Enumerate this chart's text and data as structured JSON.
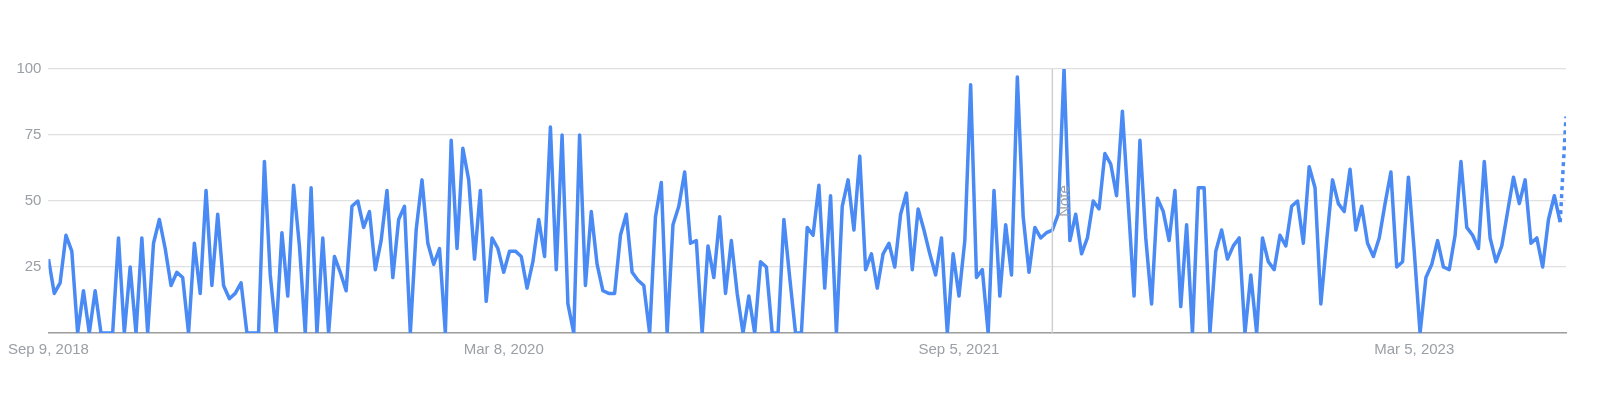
{
  "chart_data": {
    "type": "line",
    "marker": "none",
    "grid": "y",
    "x": [
      "2018-09-09",
      "2018-09-16",
      "2018-09-23",
      "2018-09-30",
      "2018-10-07",
      "2018-10-14",
      "2018-10-21",
      "2018-10-28",
      "2018-11-04",
      "2018-11-11",
      "2018-11-18",
      "2018-11-25",
      "2018-12-02",
      "2018-12-09",
      "2018-12-16",
      "2018-12-23",
      "2018-12-30",
      "2019-01-06",
      "2019-01-13",
      "2019-01-20",
      "2019-01-27",
      "2019-02-03",
      "2019-02-10",
      "2019-02-17",
      "2019-02-24",
      "2019-03-03",
      "2019-03-10",
      "2019-03-17",
      "2019-03-24",
      "2019-03-31",
      "2019-04-07",
      "2019-04-14",
      "2019-04-21",
      "2019-04-28",
      "2019-05-05",
      "2019-05-12",
      "2019-05-19",
      "2019-05-26",
      "2019-06-02",
      "2019-06-09",
      "2019-06-16",
      "2019-06-23",
      "2019-06-30",
      "2019-07-07",
      "2019-07-14",
      "2019-07-21",
      "2019-07-28",
      "2019-08-04",
      "2019-08-11",
      "2019-08-18",
      "2019-08-25",
      "2019-09-01",
      "2019-09-08",
      "2019-09-15",
      "2019-09-22",
      "2019-09-29",
      "2019-10-06",
      "2019-10-13",
      "2019-10-20",
      "2019-10-27",
      "2019-11-03",
      "2019-11-10",
      "2019-11-17",
      "2019-11-24",
      "2019-12-01",
      "2019-12-08",
      "2019-12-15",
      "2019-12-22",
      "2019-12-29",
      "2020-01-05",
      "2020-01-12",
      "2020-01-19",
      "2020-01-26",
      "2020-02-02",
      "2020-02-09",
      "2020-02-16",
      "2020-02-23",
      "2020-03-01",
      "2020-03-08",
      "2020-03-15",
      "2020-03-22",
      "2020-03-29",
      "2020-04-05",
      "2020-04-12",
      "2020-04-19",
      "2020-04-26",
      "2020-05-03",
      "2020-05-10",
      "2020-05-17",
      "2020-05-24",
      "2020-05-31",
      "2020-06-07",
      "2020-06-14",
      "2020-06-21",
      "2020-06-28",
      "2020-07-05",
      "2020-07-12",
      "2020-07-19",
      "2020-07-26",
      "2020-08-02",
      "2020-08-09",
      "2020-08-16",
      "2020-08-23",
      "2020-08-30",
      "2020-09-06",
      "2020-09-13",
      "2020-09-20",
      "2020-09-27",
      "2020-10-04",
      "2020-10-11",
      "2020-10-18",
      "2020-10-25",
      "2020-11-01",
      "2020-11-08",
      "2020-11-15",
      "2020-11-22",
      "2020-11-29",
      "2020-12-06",
      "2020-12-13",
      "2020-12-20",
      "2020-12-27",
      "2021-01-03",
      "2021-01-10",
      "2021-01-17",
      "2021-01-24",
      "2021-01-31",
      "2021-02-07",
      "2021-02-14",
      "2021-02-21",
      "2021-02-28",
      "2021-03-07",
      "2021-03-14",
      "2021-03-21",
      "2021-03-28",
      "2021-04-04",
      "2021-04-11",
      "2021-04-18",
      "2021-04-25",
      "2021-05-02",
      "2021-05-09",
      "2021-05-16",
      "2021-05-23",
      "2021-05-30",
      "2021-06-06",
      "2021-06-13",
      "2021-06-20",
      "2021-06-27",
      "2021-07-04",
      "2021-07-11",
      "2021-07-18",
      "2021-07-25",
      "2021-08-01",
      "2021-08-08",
      "2021-08-15",
      "2021-08-22",
      "2021-08-29",
      "2021-09-05",
      "2021-09-12",
      "2021-09-19",
      "2021-09-26",
      "2021-10-03",
      "2021-10-10",
      "2021-10-17",
      "2021-10-24",
      "2021-10-31",
      "2021-11-07",
      "2021-11-14",
      "2021-11-21",
      "2021-11-28",
      "2021-12-05",
      "2021-12-12",
      "2021-12-19",
      "2021-12-26",
      "2022-01-02",
      "2022-01-09",
      "2022-01-16",
      "2022-01-23",
      "2022-01-30",
      "2022-02-06",
      "2022-02-13",
      "2022-02-20",
      "2022-02-27",
      "2022-03-06",
      "2022-03-13",
      "2022-03-20",
      "2022-03-27",
      "2022-04-03",
      "2022-04-10",
      "2022-04-17",
      "2022-04-24",
      "2022-05-01",
      "2022-05-08",
      "2022-05-15",
      "2022-05-22",
      "2022-05-29",
      "2022-06-05",
      "2022-06-12",
      "2022-06-19",
      "2022-06-26",
      "2022-07-03",
      "2022-07-10",
      "2022-07-17",
      "2022-07-24",
      "2022-07-31",
      "2022-08-07",
      "2022-08-14",
      "2022-08-21",
      "2022-08-28",
      "2022-09-04",
      "2022-09-11",
      "2022-09-18",
      "2022-09-25",
      "2022-10-02",
      "2022-10-09",
      "2022-10-16",
      "2022-10-23",
      "2022-10-30",
      "2022-11-06",
      "2022-11-13",
      "2022-11-20",
      "2022-11-27",
      "2022-12-04",
      "2022-12-11",
      "2022-12-18",
      "2022-12-25",
      "2023-01-01",
      "2023-01-08",
      "2023-01-15",
      "2023-01-22",
      "2023-01-29",
      "2023-02-05",
      "2023-02-12",
      "2023-02-19",
      "2023-02-26",
      "2023-03-05",
      "2023-03-12",
      "2023-03-19",
      "2023-03-26",
      "2023-04-02",
      "2023-04-09",
      "2023-04-16",
      "2023-04-23",
      "2023-04-30",
      "2023-05-07",
      "2023-05-14",
      "2023-05-21",
      "2023-05-28",
      "2023-06-04",
      "2023-06-11",
      "2023-06-18",
      "2023-06-25",
      "2023-07-02",
      "2023-07-09",
      "2023-07-16",
      "2023-07-23",
      "2023-07-30",
      "2023-08-06",
      "2023-08-13",
      "2023-08-20",
      "2023-08-27"
    ],
    "series": [
      {
        "color": "#4a8af4",
        "line_style": "solid",
        "values": [
          28,
          15,
          19,
          37,
          31,
          0,
          16,
          0,
          16,
          0,
          0,
          0,
          36,
          0,
          25,
          0,
          36,
          0,
          34,
          43,
          32,
          18,
          23,
          21,
          0,
          34,
          15,
          54,
          18,
          45,
          18,
          13,
          15,
          19,
          0,
          0,
          0,
          65,
          22,
          0,
          38,
          14,
          56,
          33,
          0,
          55,
          0,
          36,
          0,
          29,
          23,
          16,
          48,
          50,
          40,
          46,
          24,
          35,
          54,
          21,
          43,
          48,
          0,
          39,
          58,
          34,
          26,
          32,
          0,
          73,
          32,
          70,
          58,
          28,
          54,
          12,
          36,
          32,
          23,
          31,
          31,
          29,
          17,
          27,
          43,
          29,
          78,
          24,
          75,
          11,
          0,
          75,
          18,
          46,
          26,
          16,
          15,
          15,
          37,
          45,
          23,
          20,
          18,
          0,
          44,
          57,
          0,
          41,
          48,
          61,
          34,
          35,
          0,
          33,
          21,
          44,
          15,
          35,
          15,
          0,
          14,
          0,
          27,
          25,
          0,
          0,
          43,
          21,
          0,
          0,
          40,
          37,
          56,
          17,
          52,
          0,
          48,
          58,
          39,
          67,
          24,
          30,
          17,
          30,
          34,
          25,
          45,
          53,
          24,
          47,
          39,
          30,
          22,
          36,
          0,
          30,
          14,
          35,
          94,
          21,
          24,
          0,
          54,
          14,
          41,
          22,
          97,
          44,
          23,
          40,
          36,
          38,
          39,
          45,
          100,
          35,
          45,
          30,
          36,
          50,
          47,
          68,
          64,
          52,
          84,
          49,
          14,
          73,
          36,
          11,
          51,
          46,
          35,
          54,
          10,
          41,
          0,
          55,
          55,
          0,
          31,
          39,
          28,
          33,
          36,
          0,
          22,
          0,
          36,
          27,
          24,
          37,
          33,
          48,
          50,
          34,
          63,
          55,
          11,
          35,
          58,
          49,
          46,
          62,
          39,
          48,
          34,
          29,
          36,
          49,
          61,
          25,
          27,
          59,
          31,
          0,
          21,
          26,
          35,
          25,
          24,
          37,
          65,
          40,
          37,
          32,
          65,
          36,
          27,
          33,
          46,
          59,
          49,
          58,
          34,
          36,
          25,
          43,
          52,
          42
        ]
      },
      {
        "color": "#4a8af4",
        "line_style": "dotted",
        "x": [
          "2023-08-27",
          "2023-09-03"
        ],
        "values": [
          42,
          82
        ]
      }
    ],
    "xlim": [
      "2018-09-09",
      "2023-09-03"
    ],
    "xticks": [
      {
        "value": "2018-09-09",
        "label": "Sep 9, 2018"
      },
      {
        "value": "2020-03-08",
        "label": "Mar 8, 2020"
      },
      {
        "value": "2021-09-05",
        "label": "Sep 5, 2021"
      },
      {
        "value": "2023-03-05",
        "label": "Mar 5, 2023"
      }
    ],
    "ylim": [
      0,
      100
    ],
    "yticks": [
      {
        "value": 0,
        "label": null
      },
      25,
      50,
      75,
      100
    ],
    "ref_lines": [
      {
        "axis": "x",
        "value": "2021-12-26",
        "label": "Note",
        "color": "#d0d0d0"
      }
    ]
  }
}
